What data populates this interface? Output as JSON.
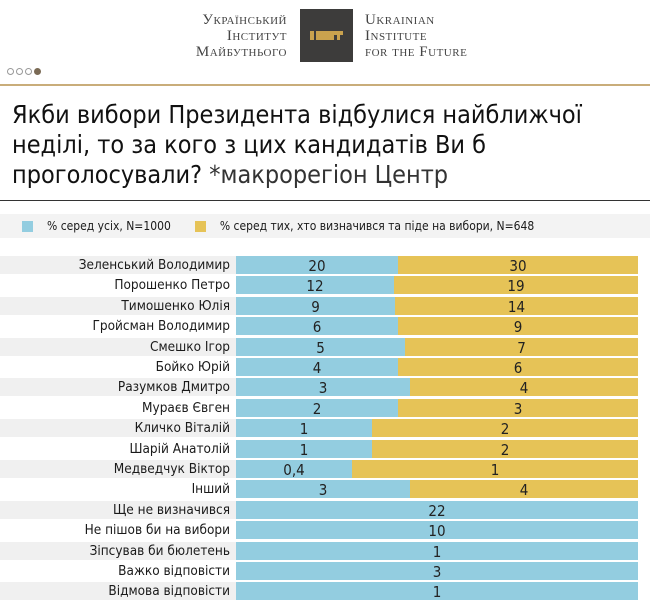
{
  "header": {
    "logo_ua": [
      "Український",
      "Інститут",
      "Майбутнього"
    ],
    "logo_en": [
      "Ukrainian",
      "Institute",
      "for the Future"
    ],
    "pager_dots": 4,
    "active_dot": 4
  },
  "chart_data": {
    "type": "bar",
    "title": "Якби вибори Президента відбулися найближчої неділі, то за кого з цих кандидатів Ви б проголосували?",
    "subtitle": "*макрорегіон Центр",
    "legend_placement": "top",
    "colors": {
      "all": "#93cde0",
      "decided": "#e6c357"
    },
    "series": [
      {
        "name": "% серед усіх, N=1000",
        "values": [
          20,
          12,
          9,
          6,
          5,
          4,
          3,
          2,
          1,
          1,
          "0,4",
          3,
          22,
          10,
          1,
          3,
          1
        ]
      },
      {
        "name": "% серед тих, хто визначився та піде на вибори, N=648",
        "values": [
          30,
          19,
          14,
          9,
          7,
          6,
          4,
          3,
          2,
          2,
          1,
          4,
          null,
          null,
          null,
          null,
          null
        ]
      }
    ],
    "categories": [
      "Зеленський Володимир",
      "Порошенко Петро",
      "Тимошенко Юлія",
      "Гройсман Володимир",
      "Смешко Ігор",
      "Бойко Юрій",
      "Разумков Дмитро",
      "Мураєв Євген",
      "Кличко Віталій",
      "Шарій Анатолій",
      "Медведчук Віктор",
      "Інший",
      "Ще не визначився",
      "Не пішов би на вибори",
      "Зіпсував би бюлетень",
      "Важко відповісти",
      "Відмова відповісти"
    ]
  }
}
